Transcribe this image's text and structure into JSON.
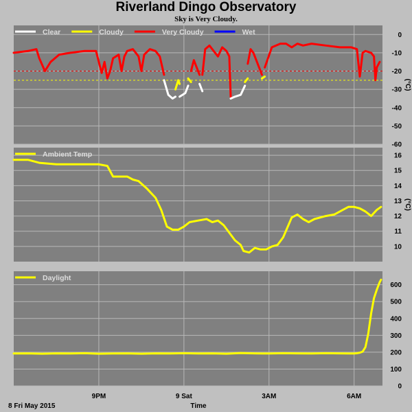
{
  "title": "Riverland Dingo Observatory",
  "subtitle": "Sky is Very Cloudy.",
  "colors": {
    "background": "#c0c0c0",
    "panel": "#808080",
    "grid": "#b8b8b8",
    "clear": "#ffffff",
    "cloudy": "#ffff00",
    "very_cloudy": "#ff0000",
    "wet": "#0000ff",
    "ambient": "#ffff00",
    "daylight": "#ffff00"
  },
  "x_axis": {
    "label": "Time",
    "start_label": "8 Fri May 2015",
    "ticks": [
      {
        "label": "9PM",
        "hours": 3.0
      },
      {
        "label": "9 Sat",
        "hours": 6.0
      },
      {
        "label": "3AM",
        "hours": 9.0
      },
      {
        "label": "6AM",
        "hours": 12.0
      }
    ],
    "range_hours": [
      0.0,
      13.0
    ]
  },
  "chart_data": [
    {
      "type": "line",
      "name": "sky",
      "legend": [
        {
          "label": "Clear",
          "color": "#ffffff"
        },
        {
          "label": "Cloudy",
          "color": "#ffff00"
        },
        {
          "label": "Very Cloudy",
          "color": "#ff0000"
        },
        {
          "label": "Wet",
          "color": "#0000ff"
        }
      ],
      "ylabel": "(°C)",
      "ylim": [
        -60,
        5
      ],
      "yticks": [
        0,
        -10,
        -20,
        -30,
        -40,
        -50,
        -60
      ],
      "thresholds": [
        {
          "value": -20,
          "color": "#ff0000"
        },
        {
          "value": -25,
          "color": "#ffff00"
        }
      ],
      "series": [
        {
          "name": "Very Cloudy",
          "color": "#ff0000",
          "x": [
            0.0,
            0.5,
            0.8,
            0.9,
            1.1,
            1.3,
            1.6,
            2.0,
            2.5,
            2.9,
            2.95,
            3.05,
            3.1,
            3.2,
            3.3,
            3.4,
            3.5,
            3.7,
            3.8,
            3.9,
            4.0,
            4.2,
            4.4,
            4.5,
            4.6,
            4.8,
            5.0,
            5.15,
            5.3
          ],
          "y": [
            -10,
            -9,
            -8,
            -13,
            -20,
            -15,
            -11,
            -10,
            -9,
            -9,
            -12,
            -18,
            -21,
            -15,
            -24,
            -20,
            -13,
            -11,
            -20,
            -12,
            -9,
            -8,
            -12,
            -20,
            -11,
            -8,
            -9,
            -12,
            -22
          ]
        },
        {
          "name": "Clear",
          "color": "#ffffff",
          "x": [
            5.3,
            5.45,
            5.6,
            5.7
          ],
          "y": [
            -25,
            -33,
            -35,
            -34
          ]
        },
        {
          "name": "Cloudy",
          "color": "#ffff00",
          "x": [
            5.7,
            5.8,
            5.85
          ],
          "y": [
            -30,
            -25,
            -27
          ]
        },
        {
          "name": "Clear",
          "color": "#ffffff",
          "x": [
            5.85,
            5.95,
            6.05,
            6.15
          ],
          "y": [
            -34,
            -33,
            -32,
            -28
          ]
        },
        {
          "name": "Cloudy",
          "color": "#ffff00",
          "x": [
            6.15,
            6.25
          ],
          "y": [
            -24,
            -26
          ]
        },
        {
          "name": "Very Cloudy",
          "color": "#ff0000",
          "x": [
            6.25,
            6.35,
            6.45,
            6.55
          ],
          "y": [
            -20,
            -14,
            -18,
            -22
          ]
        },
        {
          "name": "Clear",
          "color": "#ffffff",
          "x": [
            6.55,
            6.65
          ],
          "y": [
            -27,
            -31
          ]
        },
        {
          "name": "Very Cloudy",
          "color": "#ff0000",
          "x": [
            6.65,
            6.75,
            6.9,
            7.05,
            7.2,
            7.35,
            7.5,
            7.6,
            7.65
          ],
          "y": [
            -22,
            -8,
            -6,
            -9,
            -12,
            -7,
            -9,
            -12,
            -34
          ]
        },
        {
          "name": "Clear",
          "color": "#ffffff",
          "x": [
            7.65,
            7.8,
            8.0,
            8.15
          ],
          "y": [
            -35,
            -34,
            -33,
            -28
          ]
        },
        {
          "name": "Cloudy",
          "color": "#ffff00",
          "x": [
            8.15,
            8.25
          ],
          "y": [
            -26,
            -24
          ]
        },
        {
          "name": "Very Cloudy",
          "color": "#ff0000",
          "x": [
            8.25,
            8.35,
            8.45,
            8.55,
            8.65,
            8.7,
            8.75
          ],
          "y": [
            -16,
            -8,
            -10,
            -14,
            -18,
            -20,
            -22
          ]
        },
        {
          "name": "Cloudy",
          "color": "#ffff00",
          "x": [
            8.75,
            8.85
          ],
          "y": [
            -24,
            -23
          ]
        },
        {
          "name": "Very Cloudy",
          "color": "#ff0000",
          "x": [
            8.85,
            9.1,
            9.4,
            9.6,
            9.8,
            10.0,
            10.2,
            10.5,
            11.0,
            11.5,
            11.9,
            12.1,
            12.2,
            12.3,
            12.4,
            12.6,
            12.7,
            12.75,
            12.8,
            12.9
          ],
          "y": [
            -18,
            -7,
            -5,
            -5,
            -7,
            -5,
            -6,
            -5,
            -6,
            -7,
            -7,
            -8,
            -23,
            -10,
            -9,
            -10,
            -12,
            -25,
            -18,
            -15
          ]
        },
        {
          "name": "Wet",
          "color": "#0000ff",
          "x": [],
          "y": []
        }
      ]
    },
    {
      "type": "line",
      "name": "ambient",
      "legend": [
        {
          "label": "Ambient Temp",
          "color": "#ffff00"
        }
      ],
      "ylabel": "(°C)",
      "ylim": [
        9,
        16.5
      ],
      "yticks": [
        16,
        15,
        14,
        13,
        12,
        11,
        10
      ],
      "series": [
        {
          "name": "Ambient Temp",
          "color": "#ffff00",
          "x": [
            0.0,
            0.5,
            0.9,
            1.5,
            2.0,
            2.6,
            3.0,
            3.3,
            3.5,
            4.0,
            4.2,
            4.4,
            4.7,
            5.0,
            5.2,
            5.4,
            5.6,
            5.8,
            6.0,
            6.2,
            6.5,
            6.8,
            7.0,
            7.2,
            7.4,
            7.6,
            7.8,
            8.0,
            8.1,
            8.3,
            8.5,
            8.7,
            8.9,
            9.1,
            9.3,
            9.5,
            9.8,
            10.0,
            10.2,
            10.4,
            10.6,
            10.8,
            11.0,
            11.3,
            11.6,
            11.8,
            12.0,
            12.2,
            12.4,
            12.6,
            12.8,
            12.95
          ],
          "y": [
            15.7,
            15.7,
            15.5,
            15.4,
            15.4,
            15.4,
            15.4,
            15.3,
            14.6,
            14.6,
            14.4,
            14.3,
            13.8,
            13.2,
            12.4,
            11.3,
            11.1,
            11.1,
            11.3,
            11.6,
            11.7,
            11.8,
            11.6,
            11.7,
            11.4,
            10.9,
            10.4,
            10.1,
            9.7,
            9.6,
            9.9,
            9.8,
            9.8,
            10.0,
            10.1,
            10.6,
            11.9,
            12.1,
            11.8,
            11.6,
            11.8,
            11.9,
            12.0,
            12.1,
            12.4,
            12.6,
            12.6,
            12.5,
            12.3,
            12.0,
            12.4,
            12.6
          ]
        }
      ]
    },
    {
      "type": "line",
      "name": "daylight",
      "legend": [
        {
          "label": "Daylight",
          "color": "#ffff00"
        }
      ],
      "ylim": [
        0,
        680
      ],
      "yticks": [
        600,
        500,
        400,
        300,
        200,
        100,
        0
      ],
      "series": [
        {
          "name": "Daylight",
          "color": "#ffff00",
          "x": [
            0.0,
            0.5,
            1.0,
            1.5,
            2.0,
            2.5,
            3.0,
            3.5,
            4.0,
            4.5,
            5.0,
            5.5,
            6.0,
            6.5,
            7.0,
            7.5,
            8.0,
            8.5,
            9.0,
            9.5,
            10.0,
            10.5,
            11.0,
            11.5,
            12.0,
            12.1,
            12.2,
            12.3,
            12.4,
            12.5,
            12.6,
            12.7,
            12.8,
            12.9,
            12.95
          ],
          "y": [
            192,
            193,
            191,
            193,
            192,
            194,
            191,
            192,
            193,
            191,
            193,
            192,
            194,
            192,
            193,
            191,
            195,
            193,
            192,
            194,
            193,
            192,
            194,
            193,
            192,
            194,
            197,
            203,
            230,
            310,
            430,
            520,
            570,
            615,
            630
          ]
        }
      ]
    }
  ]
}
